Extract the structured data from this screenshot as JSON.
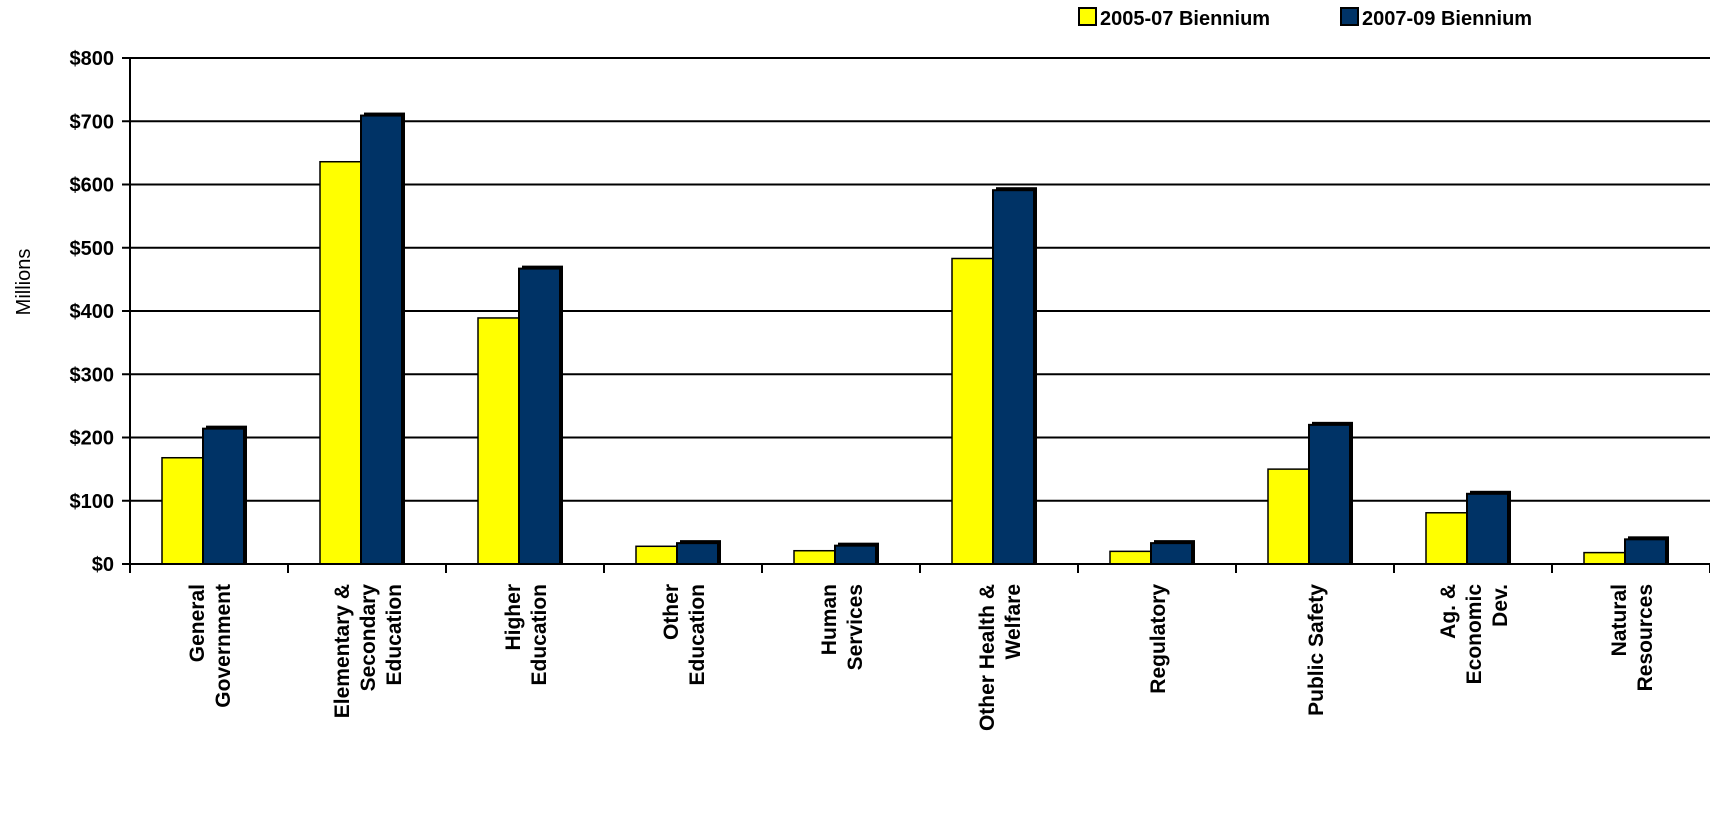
{
  "chart_data": {
    "type": "bar",
    "ylabel": "Millions",
    "ylim": [
      0,
      800
    ],
    "yticks": [
      0,
      100,
      200,
      300,
      400,
      500,
      600,
      700,
      800
    ],
    "ytick_labels": [
      "$0",
      "$100",
      "$200",
      "$300",
      "$400",
      "$500",
      "$600",
      "$700",
      "$800"
    ],
    "grid": true,
    "legend_position": "top-right",
    "categories": [
      [
        "General",
        "Government"
      ],
      [
        "Elementary &",
        "Secondary",
        "Education"
      ],
      [
        "Higher",
        "Education"
      ],
      [
        "Other",
        "Education"
      ],
      [
        "Human",
        "Services"
      ],
      [
        "Other Health &",
        "Welfare"
      ],
      [
        "Regulatory"
      ],
      [
        "Public Safety"
      ],
      [
        "Ag. &",
        "Economic",
        "Dev."
      ],
      [
        "Natural",
        "Resources"
      ]
    ],
    "series": [
      {
        "name": "2005-07 Biennium",
        "color": "#FFFF00",
        "values": [
          168,
          636,
          389,
          28,
          21,
          483,
          20,
          150,
          81,
          18
        ]
      },
      {
        "name": "2007-09 Biennium",
        "color": "#003366",
        "values": [
          214,
          709,
          467,
          33,
          29,
          591,
          33,
          220,
          111,
          39
        ]
      }
    ]
  }
}
